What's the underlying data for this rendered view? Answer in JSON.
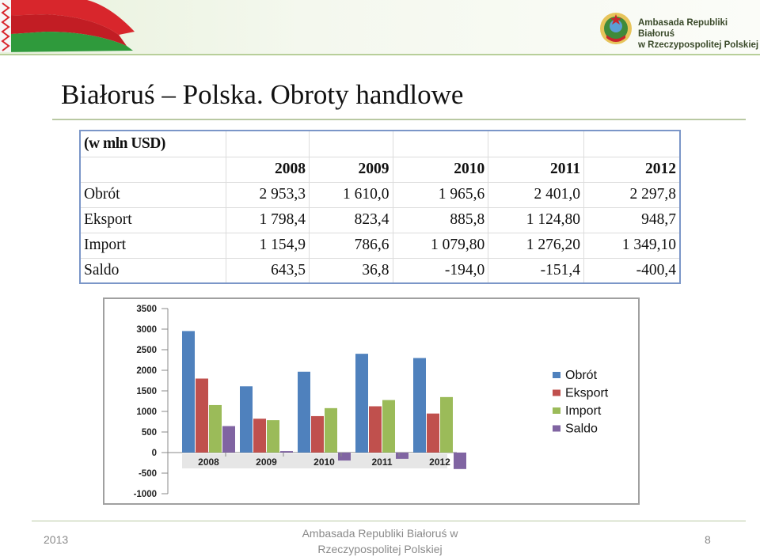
{
  "header": {
    "embassy_line1": "Ambasada Republiki Białoruś",
    "embassy_line2": "w Rzeczypospolitej Polskiej"
  },
  "title": "Białoruś – Polska. Obroty handlowe",
  "table": {
    "unit": "(w mln USD)",
    "years": [
      "2008",
      "2009",
      "2010",
      "2011",
      "2012"
    ],
    "rows": [
      {
        "label": "Obrót",
        "values": [
          "2 953,3",
          "1 610,0",
          "1 965,6",
          "2 401,0",
          "2 297,8"
        ]
      },
      {
        "label": "Eksport",
        "values": [
          "1 798,4",
          "823,4",
          "885,8",
          "1 124,80",
          "948,7"
        ]
      },
      {
        "label": "Import",
        "values": [
          "1 154,9",
          "786,6",
          "1 079,80",
          "1 276,20",
          "1 349,10"
        ]
      },
      {
        "label": "Saldo",
        "values": [
          "643,5",
          "36,8",
          "-194,0",
          "-151,4",
          "-400,4"
        ]
      }
    ]
  },
  "chart_data": {
    "type": "bar",
    "categories": [
      "2008",
      "2009",
      "2010",
      "2011",
      "2012"
    ],
    "series": [
      {
        "name": "Obrót",
        "color": "#4f81bd",
        "values": [
          2953.3,
          1610.0,
          1965.6,
          2401.0,
          2297.8
        ]
      },
      {
        "name": "Eksport",
        "color": "#c0504d",
        "values": [
          1798.4,
          823.4,
          885.8,
          1124.8,
          948.7
        ]
      },
      {
        "name": "Import",
        "color": "#9bbb59",
        "values": [
          1154.9,
          786.6,
          1079.8,
          1276.2,
          1349.1
        ]
      },
      {
        "name": "Saldo",
        "color": "#8064a2",
        "values": [
          643.5,
          36.8,
          -194.0,
          -151.4,
          -400.4
        ]
      }
    ],
    "yticks": [
      "3500",
      "3000",
      "2500",
      "2000",
      "1500",
      "1000",
      "500",
      "0",
      "-500",
      "-1000"
    ],
    "ylim": [
      -1000,
      3500
    ],
    "legend_position": "right",
    "grid": false
  },
  "footer": {
    "year": "2013",
    "center_line1": "Ambasada Republiki Białoruś w",
    "center_line2": "Rzeczypospolitej Polskiej",
    "page": "8"
  }
}
